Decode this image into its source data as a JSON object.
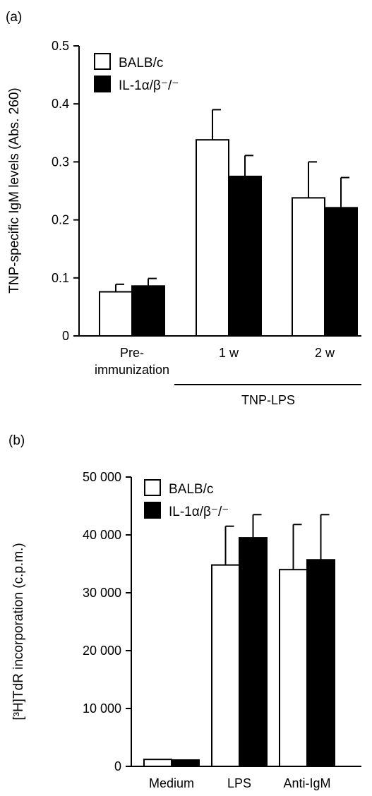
{
  "chart_data": [
    {
      "type": "bar",
      "panel_label": "(a)",
      "ylabel": "TNP-specific IgM levels (Abs. 260)",
      "ylim": [
        0,
        0.5
      ],
      "yticks": [
        "0",
        "0.1",
        "0.2",
        "0.3",
        "0.4",
        "0.5"
      ],
      "categories": [
        "Pre-\nimmunization",
        "1 w",
        "2 w"
      ],
      "group_label": "TNP-LPS",
      "legend_position": "top-left",
      "series": [
        {
          "name": "BALB/c",
          "fill": "#ffffff",
          "values": [
            0.076,
            0.338,
            0.238
          ],
          "errors": [
            0.013,
            0.052,
            0.062
          ]
        },
        {
          "name": "IL-1α/β⁻/⁻",
          "fill": "#000000",
          "values": [
            0.086,
            0.275,
            0.221
          ],
          "errors": [
            0.013,
            0.036,
            0.052
          ]
        }
      ]
    },
    {
      "type": "bar",
      "panel_label": "(b)",
      "ylabel": "[³H]TdR incorporation (c.p.m.)",
      "ylim": [
        0,
        50000
      ],
      "yticks": [
        "0",
        "10 000",
        "20 000",
        "30 000",
        "40 000",
        "50 000"
      ],
      "categories": [
        "Medium",
        "LPS",
        "Anti-IgM"
      ],
      "legend_position": "top-left",
      "series": [
        {
          "name": "BALB/c",
          "fill": "#ffffff",
          "values": [
            1200,
            34800,
            34000
          ],
          "errors": [
            0,
            6700,
            7800
          ]
        },
        {
          "name": "IL-1α/β⁻/⁻",
          "fill": "#000000",
          "values": [
            1100,
            39500,
            35700
          ],
          "errors": [
            0,
            4000,
            7800
          ]
        }
      ]
    }
  ]
}
